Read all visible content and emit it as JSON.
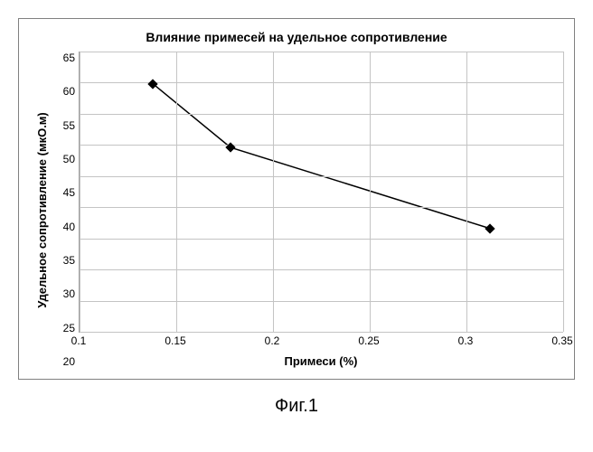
{
  "chart": {
    "type": "line",
    "title": "Влияние примесей на удельное сопротивление",
    "xlabel": "Примеси (%)",
    "ylabel": "Удельное сопротивление (мкО.м)",
    "title_fontsize": 14,
    "label_fontsize": 13,
    "tick_fontsize": 12,
    "background_color": "#ffffff",
    "border_color": "#808080",
    "grid_color": "#c4c4c4",
    "line_color": "#000000",
    "marker_color": "#000000",
    "marker_style": "diamond",
    "marker_size": 8,
    "line_width": 1.5,
    "xlim": [
      0.1,
      0.35
    ],
    "ylim": [
      20,
      65
    ],
    "xtick_step": 0.05,
    "ytick_step": 5,
    "xticks": [
      "0.1",
      "0.15",
      "0.2",
      "0.25",
      "0.3",
      "0.35"
    ],
    "yticks": [
      "65",
      "60",
      "55",
      "50",
      "45",
      "40",
      "35",
      "30",
      "25",
      "20"
    ],
    "data": {
      "x": [
        0.138,
        0.178,
        0.312
      ],
      "y": [
        59.8,
        49.6,
        36.6
      ]
    }
  },
  "caption": "Фиг.1"
}
